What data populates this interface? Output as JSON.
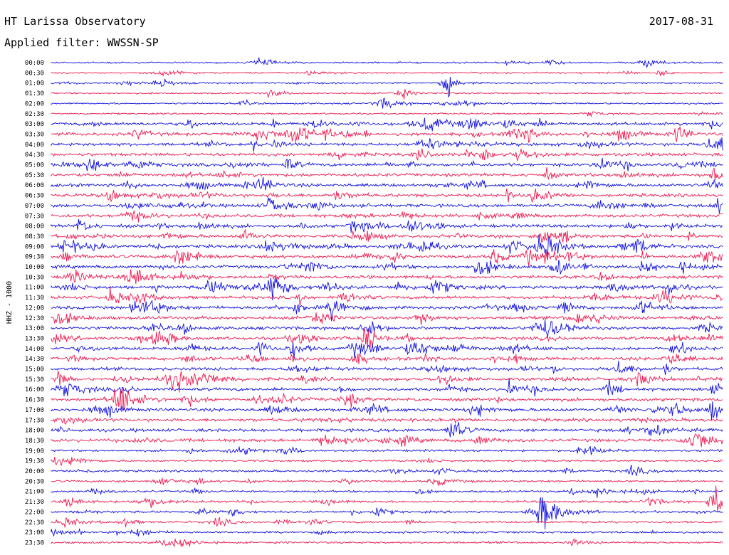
{
  "header": {
    "station": "HT Larissa Observatory",
    "date": "2017-08-31",
    "filter": "Applied filter: WWSSN-SP"
  },
  "chart_data": {
    "type": "line",
    "title": "HT Larissa Observatory",
    "subtitle": "Applied filter: WWSSN-SP",
    "ylabel": "HHZ - 1000",
    "row_times": [
      "00:00",
      "00:30",
      "01:00",
      "01:30",
      "02:00",
      "02:30",
      "03:00",
      "03:30",
      "04:00",
      "04:30",
      "05:00",
      "05:30",
      "06:00",
      "06:30",
      "07:00",
      "07:30",
      "08:00",
      "08:30",
      "09:00",
      "09:30",
      "10:00",
      "10:30",
      "11:00",
      "11:30",
      "12:00",
      "12:30",
      "13:00",
      "13:30",
      "14:00",
      "14:30",
      "15:00",
      "15:30",
      "16:00",
      "16:30",
      "17:00",
      "17:30",
      "18:00",
      "18:30",
      "19:00",
      "19:30",
      "20:00",
      "20:30",
      "21:00",
      "21:30",
      "22:00",
      "22:30",
      "23:00",
      "23:30"
    ],
    "trace_colors": [
      "#1010e0",
      "#ee1a50"
    ],
    "grid": false,
    "legend": "none"
  }
}
